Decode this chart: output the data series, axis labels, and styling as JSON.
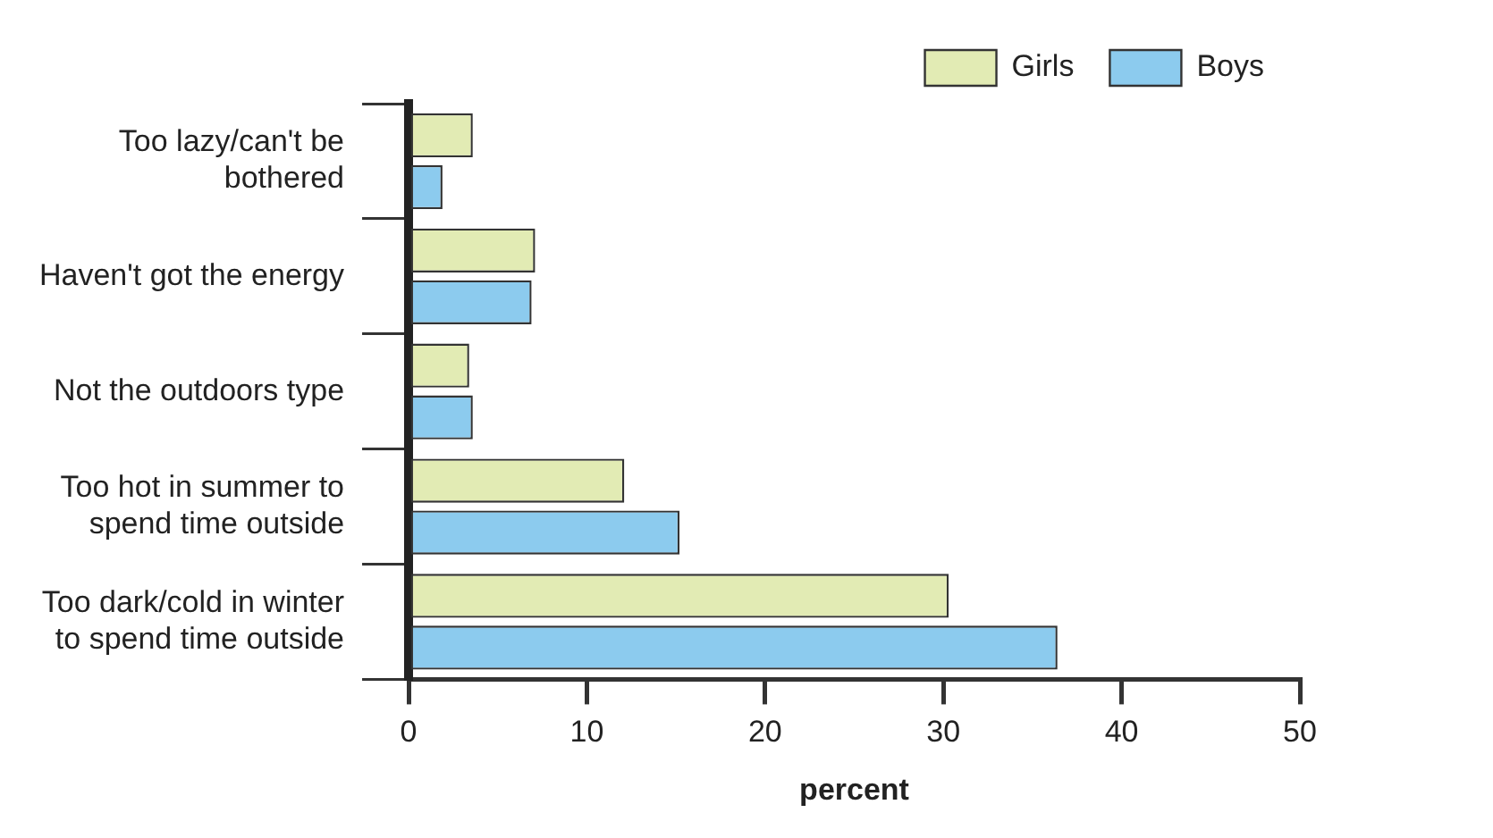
{
  "chart_data": {
    "type": "bar",
    "orientation": "horizontal",
    "xlabel": "percent",
    "categories": [
      "Too lazy/can't be bothered",
      "Haven't got the energy",
      "Not the outdoors type",
      "Too hot in summer to spend time outside",
      "Too dark/cold in winter to spend time outside"
    ],
    "series": [
      {
        "name": "Girls",
        "color": "#e2ebb4",
        "values": [
          3.6,
          7.1,
          3.4,
          12.1,
          30.3
        ]
      },
      {
        "name": "Boys",
        "color": "#8ccbee",
        "values": [
          1.9,
          6.9,
          3.6,
          15.2,
          36.4
        ]
      }
    ],
    "xlim": [
      0,
      50
    ],
    "xticks": [
      0,
      10,
      20,
      30,
      40,
      50
    ],
    "grid": false,
    "legend": "top right"
  }
}
